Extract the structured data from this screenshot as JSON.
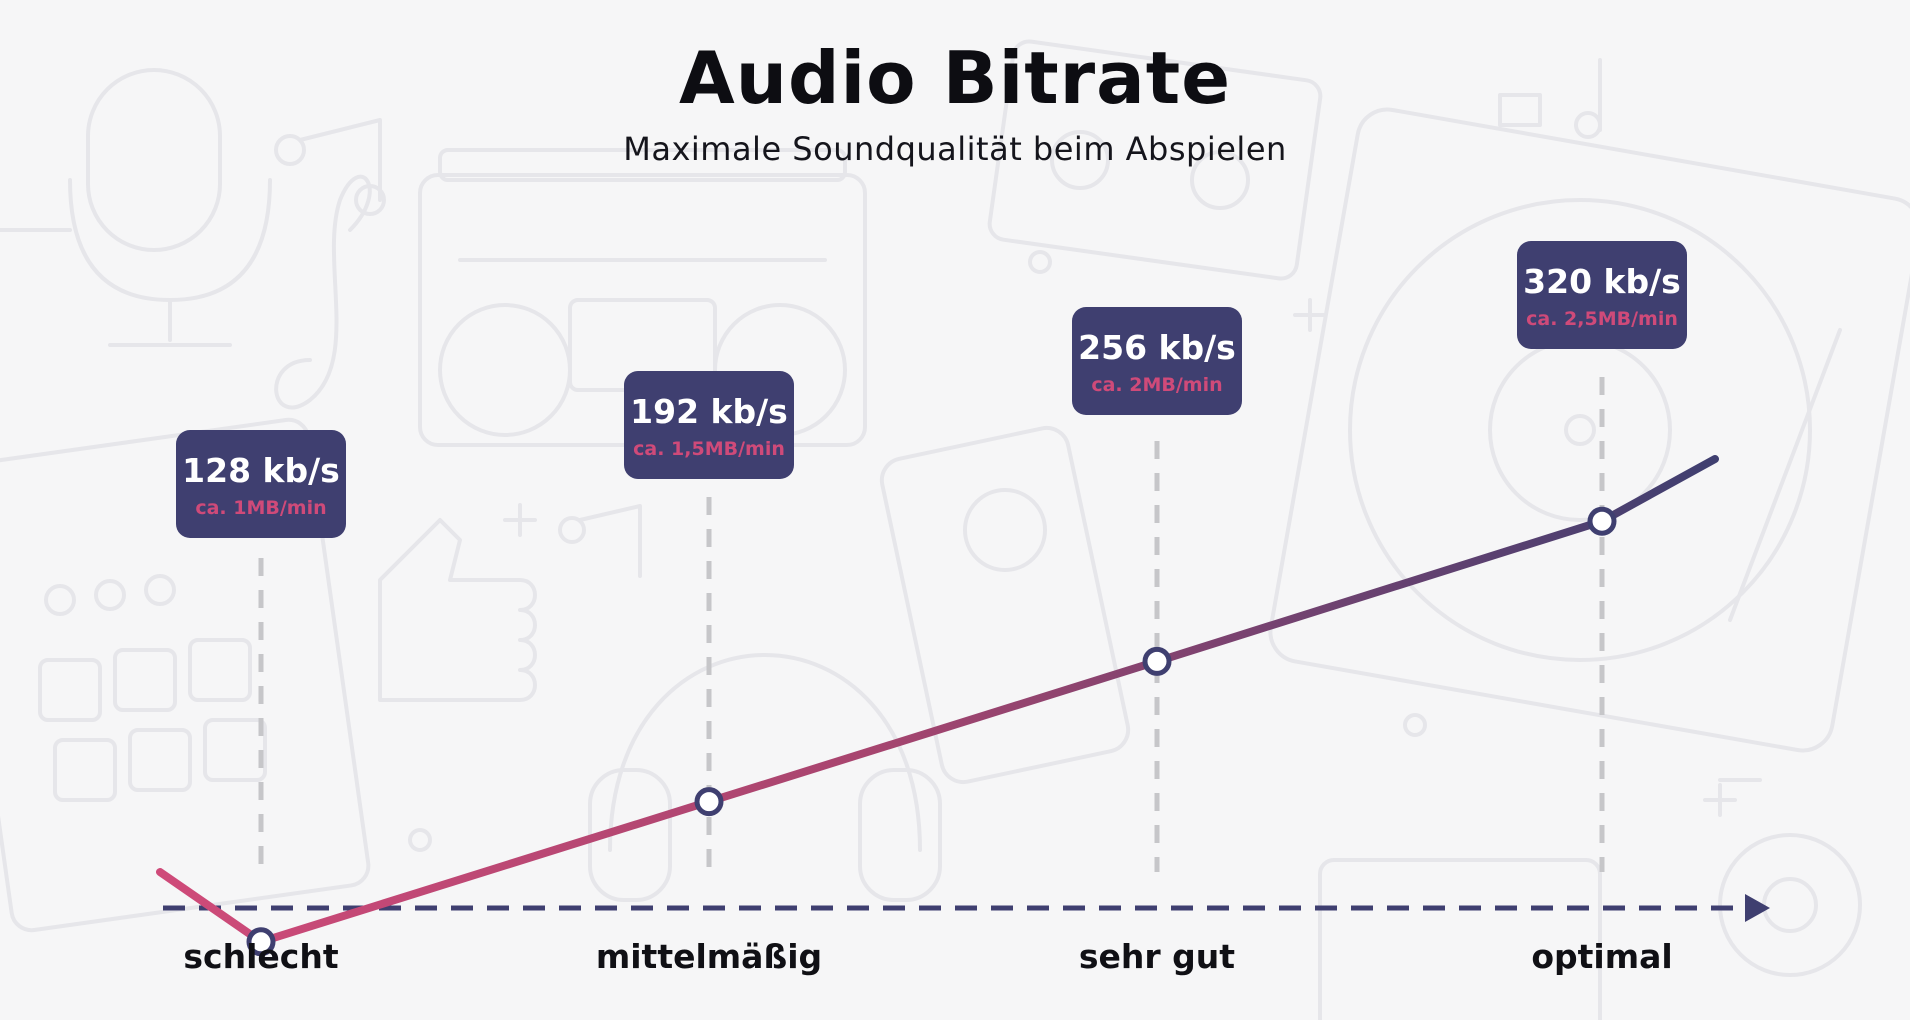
{
  "title": "Audio Bitrate",
  "subtitle": "Maximale Soundqualität beim Abspielen",
  "colors": {
    "navy": "#3f3f70",
    "pink": "#cf4a79",
    "guide": "#c6c6c9",
    "label": "#101015",
    "background": "#f6f6f7"
  },
  "chart_data": {
    "type": "line",
    "categories": [
      "schlecht",
      "mittelmäßig",
      "sehr gut",
      "optimal"
    ],
    "values": [
      128,
      192,
      256,
      320
    ],
    "value_labels": [
      "128 kb/s",
      "192 kb/s",
      "256 kb/s",
      "320 kb/s"
    ],
    "size_labels": [
      "ca. 1MB/min",
      "ca. 1,5MB/min",
      "ca. 2MB/min",
      "ca. 2,5MB/min"
    ],
    "title": "Audio Bitrate",
    "subtitle": "Maximale Soundqualität beim Abspielen",
    "xlabel": "",
    "ylabel": "",
    "ylim": [
      64,
      384
    ],
    "grid": false,
    "legend": "none"
  }
}
